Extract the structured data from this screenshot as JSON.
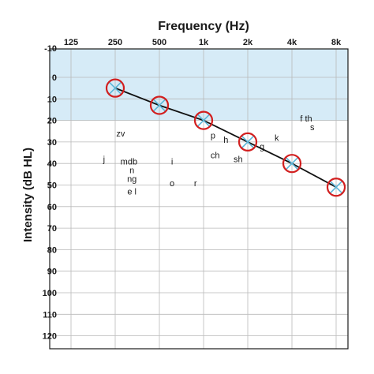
{
  "chart_data": {
    "type": "line",
    "title": "Frequency (Hz)",
    "ylabel": "Intensity (dB HL)",
    "x_categories": [
      "125",
      "250",
      "500",
      "1k",
      "2k",
      "4k",
      "8k"
    ],
    "y_ticks": [
      -10,
      0,
      10,
      20,
      30,
      40,
      50,
      60,
      70,
      80,
      90,
      100,
      110,
      120
    ],
    "ylim": [
      -10,
      120
    ],
    "y_inverted": true,
    "grid": true,
    "shaded_band": {
      "from": -10,
      "to": 20,
      "color": "#d6ebf7"
    },
    "series": [
      {
        "x": [
          "250",
          "500",
          "1k",
          "2k",
          "4k",
          "8k"
        ],
        "values": [
          5,
          13,
          20,
          30,
          40,
          51
        ],
        "marker_ring_color": "#d21f1f",
        "marker_cross_color": "#5bb6d8",
        "line_color": "#111111"
      }
    ],
    "annotations": [
      {
        "text": "zv",
        "freq": 272,
        "db": 26
      },
      {
        "text": "j",
        "freq": 210,
        "db": 38
      },
      {
        "text": "mdb",
        "freq": 310,
        "db": 39
      },
      {
        "text": "i",
        "freq": 610,
        "db": 39
      },
      {
        "text": "n",
        "freq": 325,
        "db": 43
      },
      {
        "text": "ng",
        "freq": 325,
        "db": 47
      },
      {
        "text": "o",
        "freq": 610,
        "db": 49
      },
      {
        "text": "r",
        "freq": 880,
        "db": 49
      },
      {
        "text": "e l",
        "freq": 325,
        "db": 53
      },
      {
        "text": "p",
        "freq": 1160,
        "db": 27
      },
      {
        "text": "h",
        "freq": 1420,
        "db": 29
      },
      {
        "text": "ch",
        "freq": 1200,
        "db": 36
      },
      {
        "text": "sh",
        "freq": 1720,
        "db": 38
      },
      {
        "text": "k",
        "freq": 3150,
        "db": 28
      },
      {
        "text": "g",
        "freq": 2500,
        "db": 32
      },
      {
        "text": "f th",
        "freq": 5000,
        "db": 19
      },
      {
        "text": "s",
        "freq": 5500,
        "db": 23
      }
    ]
  }
}
